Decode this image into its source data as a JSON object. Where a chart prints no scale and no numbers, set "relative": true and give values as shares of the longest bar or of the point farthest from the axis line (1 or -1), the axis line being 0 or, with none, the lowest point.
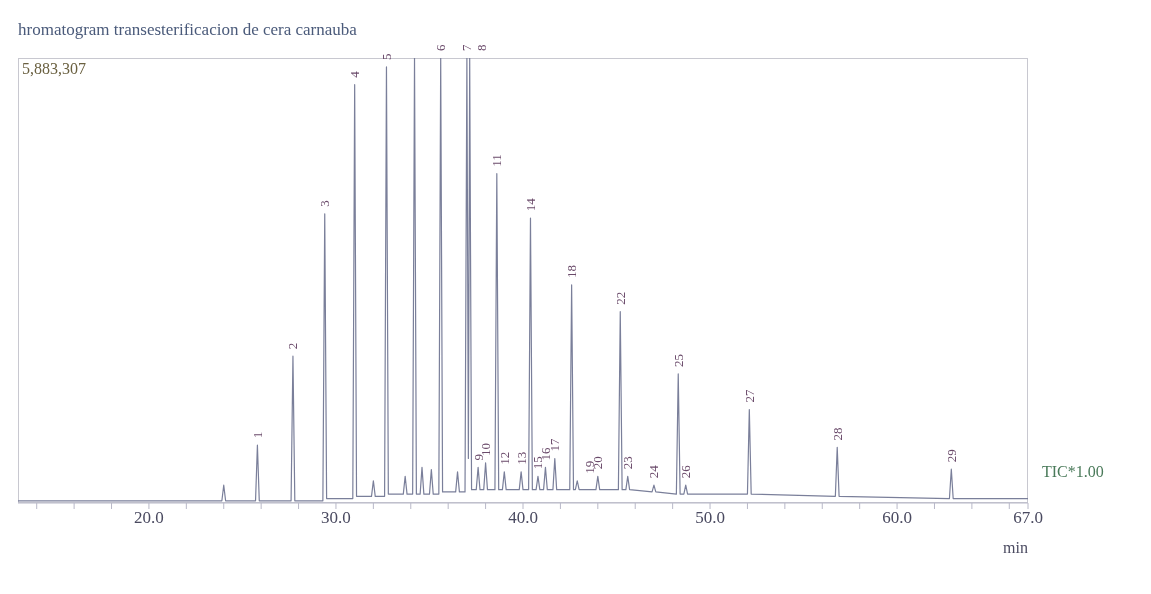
{
  "chart_data": {
    "type": "line",
    "title": "hromatogram transesterificacion de cera carnauba",
    "xlabel": "min",
    "relative": true,
    "xlim": [
      13,
      67
    ],
    "xticks": [
      {
        "value": 14,
        "label": null
      },
      {
        "value": 16,
        "label": null
      },
      {
        "value": 18,
        "label": null
      },
      {
        "value": 20,
        "label": "20.0"
      },
      {
        "value": 22,
        "label": null
      },
      {
        "value": 24,
        "label": null
      },
      {
        "value": 26,
        "label": null
      },
      {
        "value": 28,
        "label": null
      },
      {
        "value": 30,
        "label": "30.0"
      },
      {
        "value": 32,
        "label": null
      },
      {
        "value": 34,
        "label": null
      },
      {
        "value": 36,
        "label": null
      },
      {
        "value": 38,
        "label": null
      },
      {
        "value": 40,
        "label": "40.0"
      },
      {
        "value": 42,
        "label": null
      },
      {
        "value": 44,
        "label": null
      },
      {
        "value": 46,
        "label": null
      },
      {
        "value": 48,
        "label": null
      },
      {
        "value": 50,
        "label": "50.0"
      },
      {
        "value": 52,
        "label": null
      },
      {
        "value": 54,
        "label": null
      },
      {
        "value": 56,
        "label": null
      },
      {
        "value": 58,
        "label": null
      },
      {
        "value": 60,
        "label": "60.0"
      },
      {
        "value": 62,
        "label": null
      },
      {
        "value": 64,
        "label": null
      },
      {
        "value": 66,
        "label": null
      },
      {
        "value": 67,
        "label": "67.0"
      }
    ],
    "x": [
      13,
      23.9,
      24.0,
      24.1,
      25.7,
      25.8,
      25.9,
      27.6,
      27.7,
      27.8,
      29.3,
      29.4,
      29.5,
      30.9,
      31.0,
      31.1,
      31.9,
      32.0,
      32.1,
      32.6,
      32.7,
      32.8,
      33.6,
      33.7,
      33.8,
      34.1,
      34.2,
      34.3,
      34.5,
      34.6,
      34.7,
      35.0,
      35.1,
      35.2,
      35.5,
      35.6,
      35.7,
      36.4,
      36.5,
      36.6,
      36.9,
      37.0,
      37.08,
      37.15,
      37.25,
      37.5,
      37.6,
      37.7,
      37.9,
      38.0,
      38.1,
      38.5,
      38.6,
      38.7,
      38.9,
      39.0,
      39.1,
      39.8,
      39.9,
      40.0,
      40.3,
      40.4,
      40.5,
      40.7,
      40.8,
      40.9,
      41.1,
      41.2,
      41.3,
      41.6,
      41.7,
      41.8,
      42.5,
      42.6,
      42.7,
      42.8,
      42.9,
      43.0,
      43.9,
      44.0,
      44.1,
      45.1,
      45.2,
      45.3,
      45.5,
      45.6,
      45.7,
      46.9,
      47.0,
      47.1,
      48.2,
      48.3,
      48.4,
      48.6,
      48.7,
      48.8,
      52.0,
      52.1,
      52.2,
      56.7,
      56.8,
      56.9,
      62.8,
      62.9,
      63.0,
      67
    ],
    "values": [
      0.005,
      0.005,
      0.04,
      0.005,
      0.005,
      0.13,
      0.005,
      0.005,
      0.33,
      0.005,
      0.005,
      0.65,
      0.01,
      0.01,
      0.94,
      0.015,
      0.015,
      0.05,
      0.015,
      0.015,
      0.98,
      0.02,
      0.02,
      0.06,
      0.02,
      0.02,
      1,
      0.02,
      0.02,
      0.08,
      0.02,
      0.02,
      0.075,
      0.02,
      0.02,
      1,
      0.025,
      0.025,
      0.07,
      0.025,
      0.025,
      1,
      0.1,
      1,
      0.03,
      0.03,
      0.08,
      0.03,
      0.03,
      0.09,
      0.03,
      0.03,
      0.74,
      0.03,
      0.03,
      0.07,
      0.03,
      0.03,
      0.07,
      0.03,
      0.03,
      0.64,
      0.03,
      0.03,
      0.06,
      0.03,
      0.03,
      0.08,
      0.03,
      0.03,
      0.1,
      0.03,
      0.03,
      0.49,
      0.03,
      0.03,
      0.05,
      0.03,
      0.03,
      0.06,
      0.03,
      0.03,
      0.43,
      0.03,
      0.03,
      0.06,
      0.03,
      0.025,
      0.04,
      0.025,
      0.02,
      0.29,
      0.02,
      0.02,
      0.04,
      0.02,
      0.02,
      0.21,
      0.02,
      0.015,
      0.125,
      0.015,
      0.01,
      0.076,
      0.01,
      0.01
    ],
    "color": "#7a7f9a",
    "marker": "none",
    "legend": false,
    "grid": false,
    "annotations": [
      "5,883,307",
      "TIC*1.00",
      {
        "text": "1",
        "x": 25.8,
        "y": 0.13
      },
      {
        "text": "2",
        "x": 27.7,
        "y": 0.33
      },
      {
        "text": "3",
        "x": 29.4,
        "y": 0.65
      },
      {
        "text": "4",
        "x": 31.0,
        "y": 0.94
      },
      {
        "text": "5",
        "x": 32.7,
        "y": 0.98
      },
      {
        "text": "6",
        "x": 35.6,
        "y": 1
      },
      {
        "text": "7",
        "x": 37.0,
        "y": 1
      },
      {
        "text": "8",
        "x": 37.15,
        "y": 1
      },
      {
        "text": "9",
        "x": 37.6,
        "y": 0.08
      },
      {
        "text": "10",
        "x": 38.0,
        "y": 0.09
      },
      {
        "text": "11",
        "x": 38.6,
        "y": 0.74
      },
      {
        "text": "12",
        "x": 39.0,
        "y": 0.07
      },
      {
        "text": "13",
        "x": 39.9,
        "y": 0.07
      },
      {
        "text": "14",
        "x": 40.4,
        "y": 0.64
      },
      {
        "text": "15",
        "x": 40.8,
        "y": 0.06
      },
      {
        "text": "16",
        "x": 41.2,
        "y": 0.08
      },
      {
        "text": "17",
        "x": 41.7,
        "y": 0.1
      },
      {
        "text": "18",
        "x": 42.6,
        "y": 0.49
      },
      {
        "text": "19",
        "x": 42.9,
        "y": 0.05
      },
      {
        "text": "20",
        "x": 44.0,
        "y": 0.06
      },
      {
        "text": "22",
        "x": 45.2,
        "y": 0.43
      },
      {
        "text": "23",
        "x": 45.6,
        "y": 0.06
      },
      {
        "text": "24",
        "x": 47.0,
        "y": 0.04
      },
      {
        "text": "25",
        "x": 48.3,
        "y": 0.29
      },
      {
        "text": "26",
        "x": 48.7,
        "y": 0.04
      },
      {
        "text": "27",
        "x": 52.1,
        "y": 0.21
      },
      {
        "text": "28",
        "x": 56.8,
        "y": 0.125
      },
      {
        "text": "29",
        "x": 62.9,
        "y": 0.076
      }
    ]
  }
}
